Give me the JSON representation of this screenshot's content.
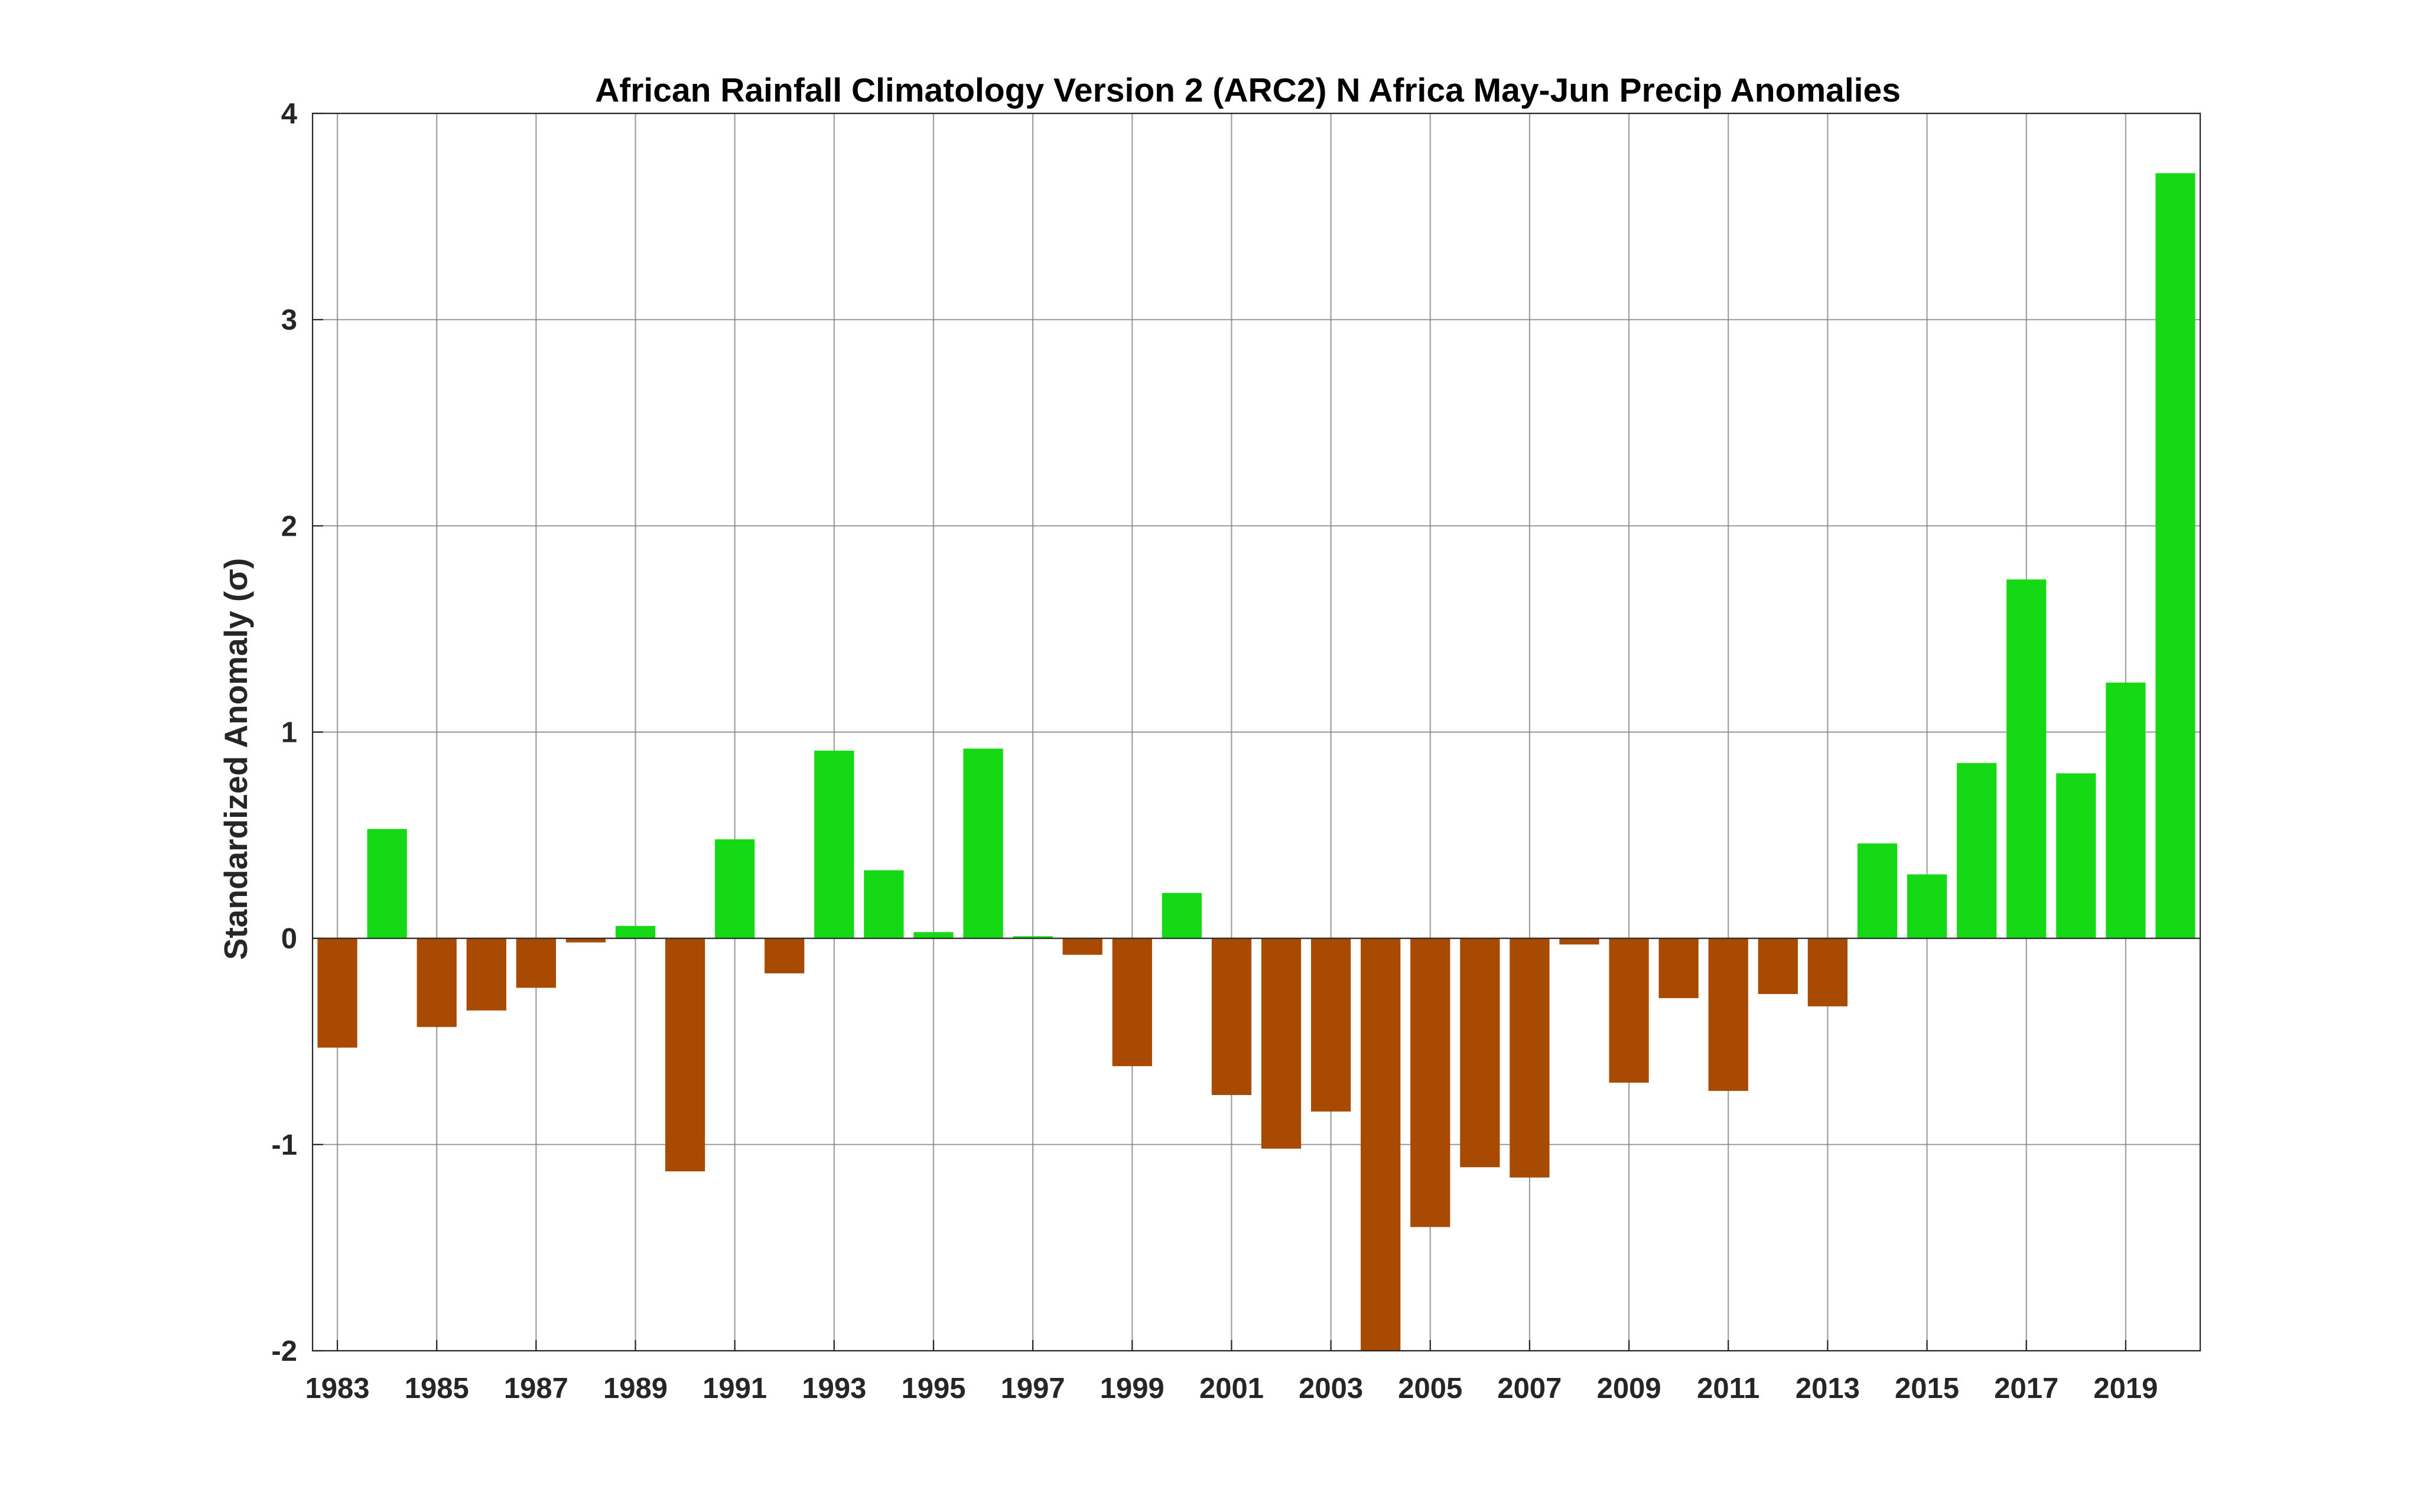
{
  "chart_data": {
    "type": "bar",
    "title": "African Rainfall Climatology Version 2 (ARC2) N Africa May-Jun Precip Anomalies",
    "xlabel": "",
    "ylabel": "Standardized Anomaly (σ)",
    "ylim": [
      -2,
      4
    ],
    "yticks": [
      -2,
      -1,
      0,
      1,
      2,
      3,
      4
    ],
    "ytick_labels": [
      "-2",
      "-1",
      "0",
      "1",
      "2",
      "3",
      "4"
    ],
    "xlim": [
      1982.5,
      2020.5
    ],
    "xticks": [
      1983,
      1985,
      1987,
      1989,
      1991,
      1993,
      1995,
      1997,
      1999,
      2001,
      2003,
      2005,
      2007,
      2009,
      2011,
      2013,
      2015,
      2017,
      2019
    ],
    "xtick_labels": [
      "1983",
      "1985",
      "1987",
      "1989",
      "1991",
      "1993",
      "1995",
      "1997",
      "1999",
      "2001",
      "2003",
      "2005",
      "2007",
      "2009",
      "2011",
      "2013",
      "2015",
      "2017",
      "2019"
    ],
    "grid": true,
    "colors": {
      "positive": "#16d916",
      "negative": "#a84a02"
    },
    "categories": [
      1983,
      1984,
      1985,
      1986,
      1987,
      1988,
      1989,
      1990,
      1991,
      1992,
      1993,
      1994,
      1995,
      1996,
      1997,
      1998,
      1999,
      2000,
      2001,
      2002,
      2003,
      2004,
      2005,
      2006,
      2007,
      2008,
      2009,
      2010,
      2011,
      2012,
      2013,
      2014,
      2015,
      2016,
      2017,
      2018,
      2019,
      2020
    ],
    "values": [
      -0.53,
      0.53,
      -0.43,
      -0.35,
      -0.24,
      -0.02,
      0.06,
      -1.13,
      0.48,
      -0.17,
      0.91,
      0.33,
      0.03,
      0.92,
      0.01,
      -0.08,
      -0.62,
      0.22,
      -0.76,
      -1.02,
      -0.84,
      -2.0,
      -1.4,
      -1.11,
      -1.16,
      -0.03,
      -0.7,
      -0.29,
      -0.74,
      -0.27,
      -0.33,
      0.46,
      0.31,
      0.85,
      1.74,
      0.8,
      1.24,
      3.71
    ]
  }
}
